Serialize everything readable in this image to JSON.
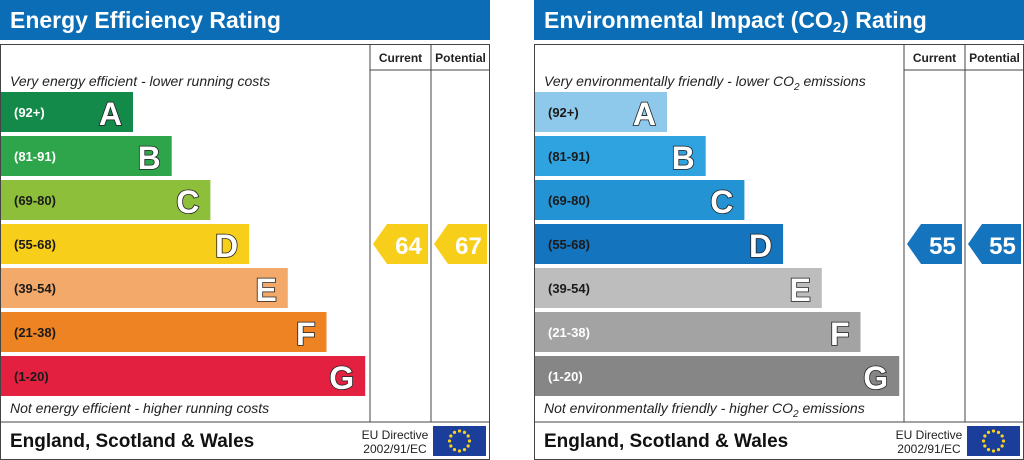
{
  "chart_data": [
    {
      "type": "bar",
      "title": "Energy Efficiency Rating",
      "columns": [
        "Current",
        "Potential"
      ],
      "top_note": "Very energy efficient - lower running costs",
      "bottom_note": "Not energy efficient - higher running costs",
      "bands": [
        {
          "letter": "A",
          "range": "(92+)",
          "color": "#138a4a",
          "label_color": "#ffffff"
        },
        {
          "letter": "B",
          "range": "(81-91)",
          "color": "#2ea54b",
          "label_color": "#ffffff"
        },
        {
          "letter": "C",
          "range": "(69-80)",
          "color": "#8dbf3a",
          "label_color": "#1a1a1a"
        },
        {
          "letter": "D",
          "range": "(55-68)",
          "color": "#f7ce1a",
          "label_color": "#1a1a1a"
        },
        {
          "letter": "E",
          "range": "(39-54)",
          "color": "#f3a96a",
          "label_color": "#1a1a1a"
        },
        {
          "letter": "F",
          "range": "(21-38)",
          "color": "#ee8323",
          "label_color": "#1a1a1a"
        },
        {
          "letter": "G",
          "range": "(1-20)",
          "color": "#e3203f",
          "label_color": "#1a1a1a"
        }
      ],
      "current": {
        "value": 64,
        "band": "D",
        "color": "#f7ce1a"
      },
      "potential": {
        "value": 67,
        "band": "D",
        "color": "#f7ce1a"
      },
      "footer": {
        "region": "England, Scotland & Wales",
        "directive_line1": "EU Directive",
        "directive_line2": "2002/91/EC"
      }
    },
    {
      "type": "bar",
      "title_main": "Environmental Impact (CO",
      "title_sub": "2",
      "title_end": ") Rating",
      "columns": [
        "Current",
        "Potential"
      ],
      "top_note": "Very environmentally friendly - lower CO",
      "top_note_sub": "2",
      "top_note_end": " emissions",
      "bottom_note": "Not environmentally friendly - higher CO",
      "bottom_note_sub": "2",
      "bottom_note_end": " emissions",
      "bands": [
        {
          "letter": "A",
          "range": "(92+)",
          "color": "#8ec9ec",
          "label_color": "#1a1a1a"
        },
        {
          "letter": "B",
          "range": "(81-91)",
          "color": "#2fa3e0",
          "label_color": "#1a1a1a"
        },
        {
          "letter": "C",
          "range": "(69-80)",
          "color": "#2393d3",
          "label_color": "#1a1a1a"
        },
        {
          "letter": "D",
          "range": "(55-68)",
          "color": "#1474bd",
          "label_color": "#1a1a1a"
        },
        {
          "letter": "E",
          "range": "(39-54)",
          "color": "#bdbdbd",
          "label_color": "#1a1a1a"
        },
        {
          "letter": "F",
          "range": "(21-38)",
          "color": "#a3a3a3",
          "label_color": "#ffffff"
        },
        {
          "letter": "G",
          "range": "(1-20)",
          "color": "#868686",
          "label_color": "#ffffff"
        }
      ],
      "current": {
        "value": 55,
        "band": "D",
        "color": "#1474bd"
      },
      "potential": {
        "value": 55,
        "band": "D",
        "color": "#1474bd"
      },
      "footer": {
        "region": "England, Scotland & Wales",
        "directive_line1": "EU Directive",
        "directive_line2": "2002/91/EC"
      }
    }
  ]
}
